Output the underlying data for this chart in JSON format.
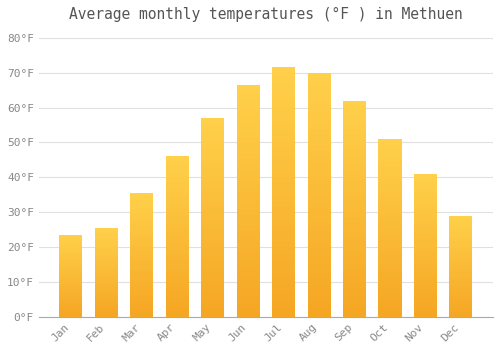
{
  "title": "Average monthly temperatures (°F ) in Methuen",
  "months": [
    "Jan",
    "Feb",
    "Mar",
    "Apr",
    "May",
    "Jun",
    "Jul",
    "Aug",
    "Sep",
    "Oct",
    "Nov",
    "Dec"
  ],
  "values": [
    23.5,
    25.5,
    35.5,
    46.0,
    57.0,
    66.5,
    71.5,
    70.0,
    62.0,
    51.0,
    41.0,
    29.0
  ],
  "bar_color_bottom": "#F5A623",
  "bar_color_top": "#FFD04A",
  "yticks": [
    0,
    10,
    20,
    30,
    40,
    50,
    60,
    70,
    80
  ],
  "ylim": [
    0,
    83
  ],
  "background_color": "#FFFFFF",
  "grid_color": "#E0E0E0",
  "title_fontsize": 10.5,
  "tick_fontsize": 8,
  "bar_width": 0.65
}
